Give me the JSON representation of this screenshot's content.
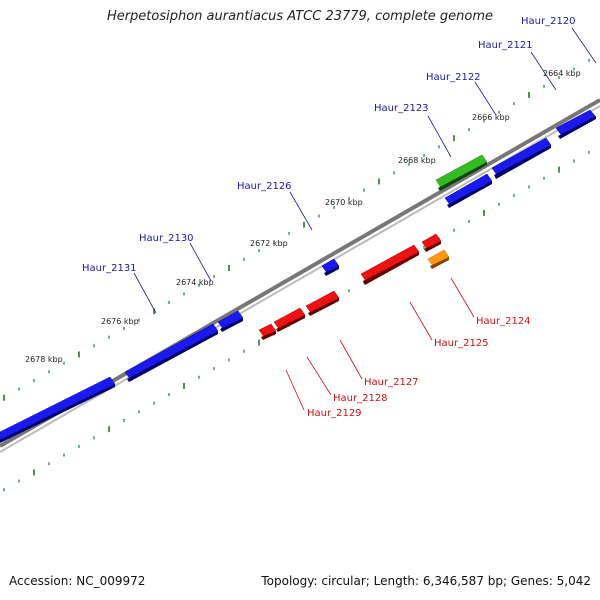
{
  "title": "Herpetosiphon aurantiacus ATCC 23779, complete genome",
  "footer": {
    "accession": "Accession: NC_009972",
    "summary": "Topology: circular; Length: 6,346,587 bp; Genes: 5,042"
  },
  "colors": {
    "forward_gene": "#1a1aee",
    "reverse_gene": "#ee1111",
    "rna_gene": "#33bb22",
    "other_gene": "#ff9911",
    "forward_label": "#1a1a9e",
    "reverse_label": "#cc1111",
    "backbone": "#777777",
    "ticks": "#227722"
  },
  "scale_labels": [
    "2664 kbp",
    "2666 kbp",
    "2668 kbp",
    "2670 kbp",
    "2672 kbp",
    "2674 kbp",
    "2676 kbp",
    "2678 kbp"
  ],
  "genes_forward": [
    {
      "name": "Haur_2120",
      "kind": "forward"
    },
    {
      "name": "Haur_2121",
      "kind": "forward"
    },
    {
      "name": "Haur_2122",
      "kind": "forward"
    },
    {
      "name": "Haur_2123",
      "kind": "rna"
    },
    {
      "name": "Haur_2126",
      "kind": "forward"
    },
    {
      "name": "Haur_2130",
      "kind": "forward"
    },
    {
      "name": "Haur_2131",
      "kind": "forward"
    }
  ],
  "genes_reverse": [
    {
      "name": "Haur_2124",
      "kind": "other"
    },
    {
      "name": "Haur_2125",
      "kind": "reverse"
    },
    {
      "name": "Haur_2127",
      "kind": "reverse"
    },
    {
      "name": "Haur_2128",
      "kind": "reverse"
    },
    {
      "name": "Haur_2129",
      "kind": "reverse"
    }
  ]
}
